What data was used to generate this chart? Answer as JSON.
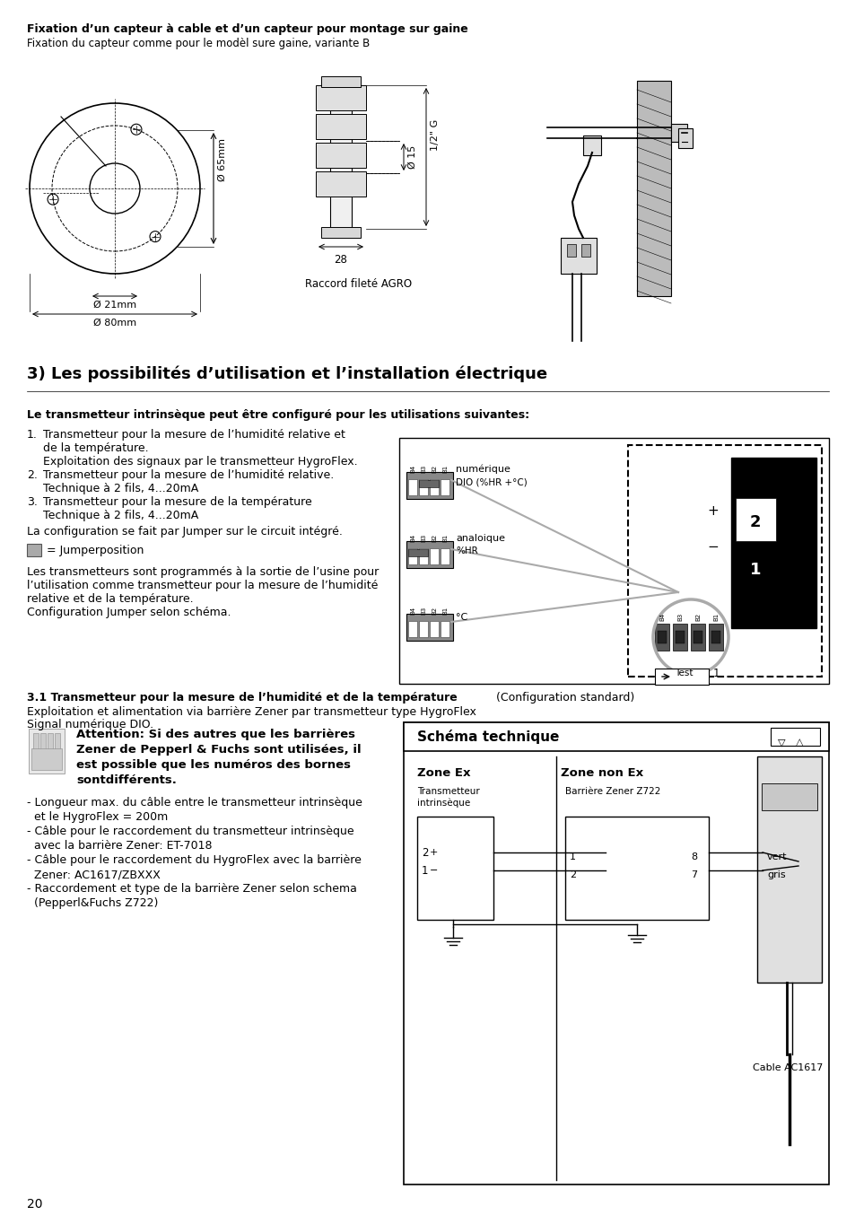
{
  "page_number": "20",
  "bg_color": "#ffffff",
  "title1_bold": "Fixation d’un capteur à cable et d’un capteur pour montage sur gaine",
  "title1_normal": "Fixation du capteur comme pour le modèl sure gaine, variante B",
  "section_title": "3) Les possibilités d’utilisation et l’installation électrique",
  "subsection1_bold": "Le transmetteur intrinsèque peut être configuré pour les utilisations suivantes:",
  "subsection2_bold": "3.1 Transmetteur pour la mesure de l’humidité et de la température",
  "subsection2_normal": "  (Configuration standard)",
  "exploit_text1": "Exploitation et alimentation via barrière Zener par transmetteur type HygroFlex",
  "exploit_text2": "Signal numérique DIO.",
  "schema_title": "Schéma technique",
  "zone_ex": "Zone Ex",
  "zone_non_ex": "Zone non Ex",
  "transmetteur_label1": "Transmetteur",
  "transmetteur_label2": "intrinsèque",
  "barriere_label": "Barrière Zener Z722",
  "vert_label": "vert",
  "gris_label": "gris",
  "cable_label": "Cable AC1617",
  "numerique_label": "numérique",
  "dio_label": "DIO (%HR +°C)",
  "analogique_label1": "analoique",
  "analogique_label2": "%HR",
  "celsius_label": "°C"
}
